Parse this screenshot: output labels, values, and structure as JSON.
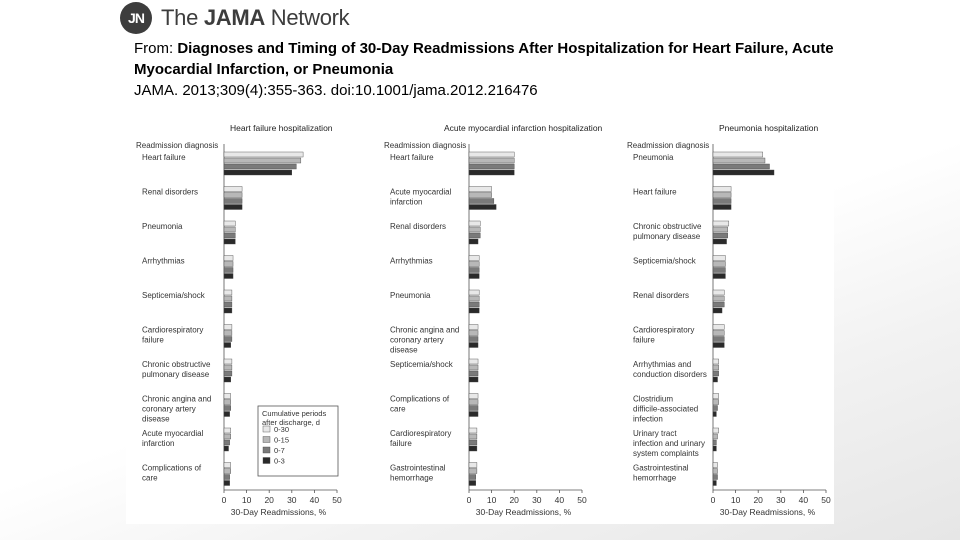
{
  "brand": {
    "logo_initials": "JN",
    "name_prefix": "The",
    "name_bold": "JAMA",
    "name_suffix": "Network"
  },
  "citation": {
    "from_label": "From:",
    "title": "Diagnoses and Timing of 30-Day Readmissions After Hospitalization for Heart Failure, Acute Myocardial Infarction, or Pneumonia",
    "reference": "JAMA. 2013;309(4):355-363. doi:10.1001/jama.2012.216476"
  },
  "colors": {
    "0-30": "#e8e8e8",
    "0-15": "#b8b8b8",
    "0-7": "#7a7a7a",
    "0-3": "#2a2a2a"
  },
  "chart_data": [
    {
      "type": "bar",
      "title": "Heart failure hospitalization",
      "category_header": "Readmission diagnosis",
      "xlabel": "30-Day Readmissions, %",
      "xlim": [
        0,
        50
      ],
      "xticks": [
        0,
        10,
        20,
        30,
        40,
        50
      ],
      "categories": [
        "Heart failure",
        "Renal disorders",
        "Pneumonia",
        "Arrhythmias",
        "Septicemia/shock",
        "Cardiorespiratory failure",
        "Chronic obstructive pulmonary disease",
        "Chronic angina and coronary artery disease",
        "Acute myocardial infarction",
        "Complications of care"
      ],
      "series": [
        {
          "name": "0-30",
          "values": [
            35,
            8,
            5,
            4,
            3.5,
            3.5,
            3.5,
            3.0,
            3.0,
            3.0
          ]
        },
        {
          "name": "0-15",
          "values": [
            34,
            8,
            5,
            4,
            3.5,
            3.5,
            3.5,
            3.0,
            3.0,
            3.0
          ]
        },
        {
          "name": "0-7",
          "values": [
            32,
            8,
            5,
            4,
            3.5,
            3.5,
            3.5,
            3.0,
            2.5,
            2.5
          ]
        },
        {
          "name": "0-3",
          "values": [
            30,
            8,
            5,
            4,
            3.5,
            3.0,
            3.0,
            2.5,
            2.0,
            2.5
          ]
        }
      ],
      "legend": {
        "title": "Cumulative periods after discharge, d",
        "entries": [
          "0-30",
          "0-15",
          "0-7",
          "0-3"
        ],
        "placement": "bottom-right"
      }
    },
    {
      "type": "bar",
      "title": "Acute myocardial infarction hospitalization",
      "category_header": "Readmission diagnosis",
      "xlabel": "30-Day Readmissions, %",
      "xlim": [
        0,
        50
      ],
      "xticks": [
        0,
        10,
        20,
        30,
        40,
        50
      ],
      "categories": [
        "Heart failure",
        "Acute myocardial infarction",
        "Renal disorders",
        "Arrhythmias",
        "Pneumonia",
        "Chronic angina and coronary artery disease",
        "Septicemia/shock",
        "Complications of care",
        "Cardiorespiratory failure",
        "Gastrointestinal hemorrhage"
      ],
      "series": [
        {
          "name": "0-30",
          "values": [
            20,
            10,
            5,
            4.5,
            4.5,
            4,
            4,
            4,
            3.5,
            3.5
          ]
        },
        {
          "name": "0-15",
          "values": [
            20,
            10,
            5,
            4.5,
            4.5,
            4,
            4,
            4,
            3.5,
            3.5
          ]
        },
        {
          "name": "0-7",
          "values": [
            20,
            11,
            5,
            4.5,
            4.5,
            4,
            4,
            4,
            3.5,
            3.0
          ]
        },
        {
          "name": "0-3",
          "values": [
            20,
            12,
            4,
            4.5,
            4.5,
            4,
            4,
            4,
            3.5,
            3.0
          ]
        }
      ]
    },
    {
      "type": "bar",
      "title": "Pneumonia hospitalization",
      "category_header": "Readmission diagnosis",
      "xlabel": "30-Day Readmissions, %",
      "xlim": [
        0,
        50
      ],
      "xticks": [
        0,
        10,
        20,
        30,
        40,
        50
      ],
      "categories": [
        "Pneumonia",
        "Heart failure",
        "Chronic obstructive pulmonary disease",
        "Septicemia/shock",
        "Renal disorders",
        "Cardiorespiratory failure",
        "Arrhythmias and conduction disorders",
        "Clostridium difficile-associated infection",
        "Urinary tract infection and urinary system complaints",
        "Gastrointestinal hemorrhage"
      ],
      "series": [
        {
          "name": "0-30",
          "values": [
            22,
            8,
            7,
            5.5,
            5,
            5,
            2.5,
            2.5,
            2.5,
            2
          ]
        },
        {
          "name": "0-15",
          "values": [
            23,
            8,
            6.5,
            5.5,
            5,
            5,
            2.5,
            2.5,
            2,
            2
          ]
        },
        {
          "name": "0-7",
          "values": [
            25,
            8,
            6.5,
            5.5,
            5,
            5,
            2.5,
            2,
            1.5,
            2
          ]
        },
        {
          "name": "0-3",
          "values": [
            27,
            8,
            6,
            5.5,
            4,
            5,
            2,
            1.5,
            1.5,
            1.5
          ]
        }
      ]
    }
  ]
}
